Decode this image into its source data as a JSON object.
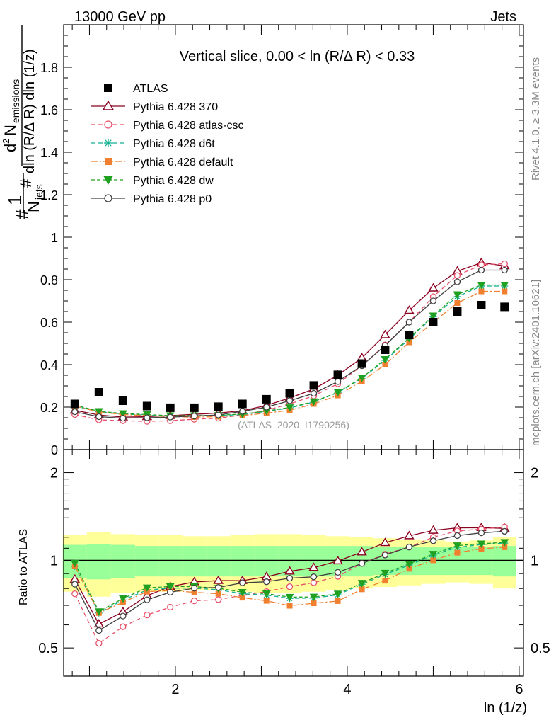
{
  "header": {
    "left": "13000 GeV pp",
    "right": "Jets"
  },
  "side_labels": {
    "rivet": "Rivet 4.1.0, ≥ 3.3M events",
    "mcplots": "mcplots.cern.ch [arXiv:2401.10621]"
  },
  "main_plot": {
    "title": "Vertical slice, 0.00 < ln (R/Δ R) < 0.33",
    "watermark": "(ATLAS_2020_I1790256)",
    "ylabel": "1/N_jets d²N_emissions / dln(R/ΔR) dln(1/z)",
    "ylim": [
      0,
      2.0
    ],
    "yticks": [
      "0",
      "0.2",
      "0.4",
      "0.6",
      "0.8",
      "1",
      "1.2",
      "1.4",
      "1.6",
      "1.8"
    ]
  },
  "ratio_plot": {
    "ylabel": "Ratio to ATLAS",
    "yticks_left": [
      "0.5",
      "1",
      "2"
    ],
    "yticks_right": [
      "0.5",
      "1",
      "2"
    ]
  },
  "x_axis": {
    "label": "ln (1/z)",
    "ticks": [
      "2",
      "4",
      "6"
    ],
    "xlim": [
      0.7,
      6.05
    ]
  },
  "chart_data": {
    "type": "line",
    "x": [
      0.83,
      1.11,
      1.39,
      1.67,
      1.94,
      2.22,
      2.5,
      2.78,
      3.06,
      3.33,
      3.61,
      3.89,
      4.17,
      4.44,
      4.72,
      5.0,
      5.28,
      5.56,
      5.83
    ],
    "atlas": {
      "name": "ATLAS",
      "values": [
        0.215,
        0.27,
        0.23,
        0.205,
        0.197,
        0.197,
        0.202,
        0.215,
        0.237,
        0.265,
        0.302,
        0.352,
        0.405,
        0.47,
        0.54,
        0.6,
        0.65,
        0.68,
        0.672
      ],
      "band_inner": [
        0.13,
        0.14,
        0.13,
        0.12,
        0.12,
        0.12,
        0.12,
        0.12,
        0.12,
        0.12,
        0.12,
        0.12,
        0.12,
        0.11,
        0.11,
        0.11,
        0.11,
        0.11,
        0.12
      ],
      "band_outer": [
        0.22,
        0.25,
        0.23,
        0.22,
        0.22,
        0.21,
        0.21,
        0.22,
        0.23,
        0.23,
        0.22,
        0.21,
        0.2,
        0.19,
        0.18,
        0.17,
        0.16,
        0.17,
        0.2
      ]
    },
    "series": [
      {
        "name": "Pythia 6.428 370",
        "color": "#8b0020",
        "dash": "",
        "marker": "triangle-open",
        "values": [
          0.185,
          0.163,
          0.153,
          0.155,
          0.16,
          0.166,
          0.172,
          0.183,
          0.208,
          0.243,
          0.285,
          0.35,
          0.432,
          0.54,
          0.655,
          0.76,
          0.84,
          0.88,
          0.865
        ]
      },
      {
        "name": "Pythia 6.428 atlas-csc",
        "color": "#e8506a",
        "dash": "6,4",
        "marker": "circle-open",
        "values": [
          0.165,
          0.14,
          0.136,
          0.133,
          0.136,
          0.143,
          0.148,
          0.163,
          0.185,
          0.215,
          0.253,
          0.31,
          0.395,
          0.493,
          0.6,
          0.72,
          0.82,
          0.87,
          0.875
        ]
      },
      {
        "name": "Pythia 6.428 d6t",
        "color": "#10b090",
        "dash": "6,4",
        "marker": "asterisk",
        "values": [
          0.205,
          0.178,
          0.168,
          0.162,
          0.158,
          0.158,
          0.16,
          0.165,
          0.18,
          0.196,
          0.224,
          0.268,
          0.335,
          0.42,
          0.52,
          0.625,
          0.72,
          0.77,
          0.77
        ]
      },
      {
        "name": "Pythia 6.428 default",
        "color": "#f08030",
        "dash": "9,3,2,3",
        "marker": "square-filled",
        "values": [
          0.205,
          0.178,
          0.165,
          0.16,
          0.155,
          0.153,
          0.155,
          0.16,
          0.172,
          0.185,
          0.215,
          0.255,
          0.322,
          0.4,
          0.505,
          0.6,
          0.69,
          0.745,
          0.745
        ]
      },
      {
        "name": "Pythia 6.428 dw",
        "color": "#20a020",
        "dash": "5,3",
        "marker": "triangle-down-filled",
        "values": [
          0.21,
          0.18,
          0.17,
          0.165,
          0.16,
          0.16,
          0.162,
          0.167,
          0.182,
          0.198,
          0.226,
          0.27,
          0.338,
          0.425,
          0.525,
          0.63,
          0.73,
          0.775,
          0.775
        ]
      },
      {
        "name": "Pythia 6.428 p0",
        "color": "#404040",
        "dash": "",
        "marker": "circle-open",
        "values": [
          0.178,
          0.155,
          0.148,
          0.15,
          0.153,
          0.158,
          0.163,
          0.18,
          0.2,
          0.23,
          0.265,
          0.32,
          0.395,
          0.49,
          0.6,
          0.7,
          0.79,
          0.845,
          0.845
        ]
      }
    ]
  }
}
